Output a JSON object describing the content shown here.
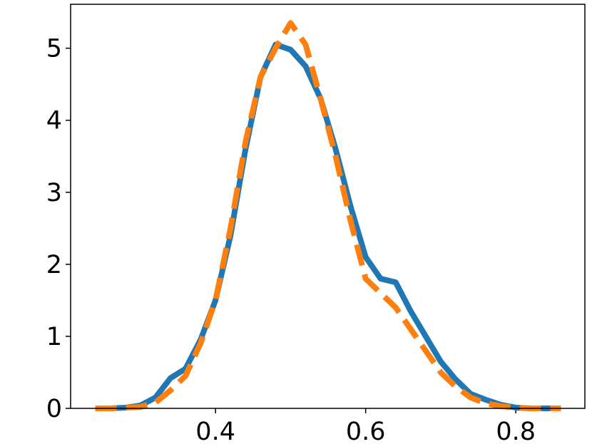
{
  "chart_data": {
    "type": "line",
    "x": [
      0.24,
      0.26,
      0.28,
      0.3,
      0.32,
      0.34,
      0.36,
      0.38,
      0.4,
      0.42,
      0.44,
      0.46,
      0.48,
      0.5,
      0.52,
      0.54,
      0.56,
      0.58,
      0.6,
      0.62,
      0.64,
      0.66,
      0.68,
      0.7,
      0.72,
      0.74,
      0.76,
      0.78,
      0.8,
      0.82,
      0.84,
      0.86
    ],
    "series": [
      {
        "color": "#1f77b4",
        "style": "solid",
        "values": [
          0,
          0,
          0.01,
          0.04,
          0.15,
          0.42,
          0.55,
          0.95,
          1.5,
          2.4,
          3.6,
          4.6,
          5.05,
          4.98,
          4.75,
          4.3,
          3.6,
          2.8,
          2.1,
          1.8,
          1.75,
          1.35,
          1.0,
          0.65,
          0.4,
          0.2,
          0.12,
          0.05,
          0.01,
          0,
          0,
          0
        ]
      },
      {
        "color": "#ff7f0e",
        "style": "dashed",
        "values": [
          0,
          0,
          0.01,
          0.02,
          0.08,
          0.25,
          0.45,
          0.9,
          1.5,
          2.5,
          3.7,
          4.6,
          5.0,
          5.35,
          5.05,
          4.3,
          3.5,
          2.6,
          1.8,
          1.6,
          1.4,
          1.1,
          0.8,
          0.5,
          0.3,
          0.15,
          0.07,
          0.03,
          0.01,
          0,
          0,
          0
        ]
      }
    ],
    "xlim": [
      0.207,
      0.892
    ],
    "ylim": [
      0,
      5.61
    ],
    "xticks": [
      0.4,
      0.6,
      0.8
    ],
    "yticks": [
      0,
      1,
      2,
      3,
      4,
      5
    ]
  }
}
